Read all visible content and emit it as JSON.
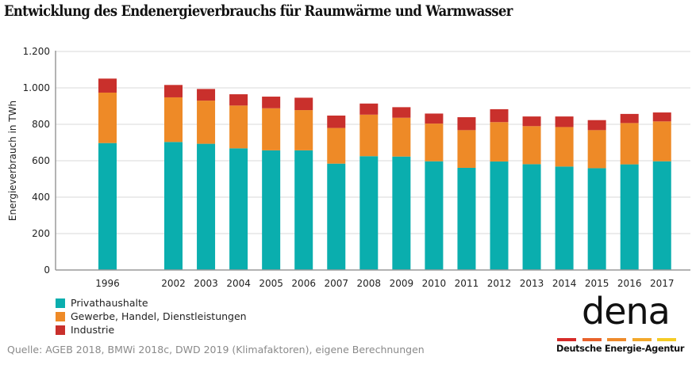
{
  "title": "Entwicklung des Endenergieverbrauchs für Raumwärme und Warmwasser",
  "chart_data": {
    "type": "bar",
    "stacked": true,
    "title": "Entwicklung des Endenergieverbrauchs für Raumwärme und Warmwasser",
    "xlabel": "",
    "ylabel": "Energieverbrauch  in TWh",
    "ylim": [
      0,
      1200
    ],
    "yticks": [
      0,
      200,
      400,
      600,
      800,
      1000,
      1200
    ],
    "ytick_labels": [
      "0",
      "200",
      "400",
      "600",
      "800",
      "1.000",
      "1.200"
    ],
    "grid": true,
    "categories": [
      "1996",
      "2002",
      "2003",
      "2004",
      "2005",
      "2006",
      "2007",
      "2008",
      "2009",
      "2010",
      "2011",
      "2012",
      "2013",
      "2014",
      "2015",
      "2016",
      "2017"
    ],
    "series": [
      {
        "name": "Privathaushalte",
        "color": "#0aaeae",
        "values": [
          697,
          703,
          693,
          668,
          657,
          657,
          584,
          625,
          623,
          597,
          561,
          596,
          581,
          568,
          559,
          580,
          597
        ]
      },
      {
        "name": "Gewerbe, Handel, Dienstleistungen",
        "color": "#ee8a27",
        "values": [
          277,
          245,
          237,
          235,
          231,
          221,
          196,
          228,
          213,
          207,
          207,
          216,
          209,
          217,
          209,
          227,
          219
        ]
      },
      {
        "name": "Industrie",
        "color": "#c9302c",
        "values": [
          77,
          68,
          64,
          62,
          64,
          68,
          68,
          61,
          58,
          55,
          71,
          71,
          53,
          58,
          55,
          50,
          49
        ]
      }
    ],
    "legend_position": "bottom-left"
  },
  "source": "Quelle: AGEB 2018, BMWi 2018c, DWD 2019 (Klimafaktoren), eigene Berechnungen",
  "logo": {
    "word": "dena",
    "subtitle": "Deutsche Energie-Agentur",
    "stripe_colors": [
      "#d62a28",
      "#e8622b",
      "#ee8a2a",
      "#f3a82a",
      "#f5cc24"
    ]
  }
}
